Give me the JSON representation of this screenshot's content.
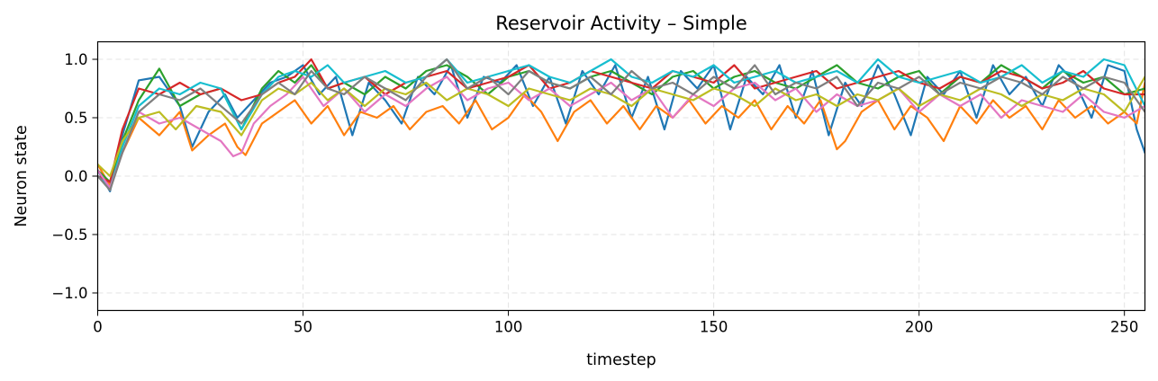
{
  "chart_data": {
    "type": "line",
    "title": "Reservoir Activity – Simple",
    "xlabel": "timestep",
    "ylabel": "Neuron state",
    "xlim": [
      0,
      255
    ],
    "ylim": [
      -1.15,
      1.15
    ],
    "xticks": [
      0,
      50,
      100,
      150,
      200,
      250
    ],
    "yticks": [
      -1.0,
      -0.5,
      0.0,
      0.5,
      1.0
    ],
    "xtick_labels": [
      "0",
      "50",
      "100",
      "150",
      "200",
      "250"
    ],
    "ytick_labels": [
      "−1.0",
      "−0.5",
      "0.0",
      "0.5",
      "1.0"
    ],
    "grid": true,
    "legend": "none",
    "series": [
      {
        "color": "#1f77b4",
        "x": [
          0,
          3,
          6,
          10,
          15,
          20,
          23,
          27,
          31,
          34,
          38,
          42,
          46,
          50,
          54,
          58,
          62,
          66,
          70,
          74,
          78,
          82,
          86,
          90,
          94,
          98,
          102,
          106,
          110,
          114,
          118,
          122,
          126,
          130,
          134,
          138,
          142,
          146,
          150,
          154,
          158,
          162,
          166,
          170,
          174,
          178,
          182,
          186,
          190,
          194,
          198,
          202,
          206,
          210,
          214,
          218,
          222,
          226,
          230,
          234,
          238,
          242,
          246,
          250,
          253,
          255
        ],
        "y": [
          0.05,
          -0.13,
          0.35,
          0.82,
          0.85,
          0.6,
          0.25,
          0.55,
          0.7,
          0.5,
          0.65,
          0.8,
          0.85,
          0.95,
          0.7,
          0.85,
          0.35,
          0.8,
          0.65,
          0.45,
          0.85,
          0.7,
          0.95,
          0.5,
          0.85,
          0.8,
          0.95,
          0.6,
          0.85,
          0.45,
          0.9,
          0.7,
          0.95,
          0.5,
          0.85,
          0.4,
          0.9,
          0.75,
          0.95,
          0.4,
          0.85,
          0.7,
          0.95,
          0.5,
          0.9,
          0.35,
          0.8,
          0.6,
          0.95,
          0.7,
          0.35,
          0.85,
          0.7,
          0.9,
          0.5,
          0.95,
          0.7,
          0.85,
          0.6,
          0.95,
          0.8,
          0.5,
          0.95,
          0.9,
          0.4,
          0.2
        ]
      },
      {
        "color": "#ff7f0e",
        "x": [
          0,
          3,
          6,
          10,
          15,
          20,
          23,
          27,
          31,
          34,
          36,
          40,
          44,
          48,
          52,
          56,
          60,
          64,
          68,
          72,
          76,
          80,
          84,
          88,
          92,
          96,
          100,
          104,
          108,
          112,
          116,
          120,
          124,
          128,
          132,
          136,
          140,
          144,
          148,
          152,
          156,
          160,
          164,
          168,
          172,
          176,
          180,
          182,
          186,
          190,
          194,
          198,
          202,
          206,
          210,
          214,
          218,
          222,
          226,
          230,
          234,
          238,
          242,
          246,
          250,
          253,
          255
        ],
        "y": [
          0.1,
          -0.08,
          0.2,
          0.5,
          0.35,
          0.55,
          0.22,
          0.35,
          0.45,
          0.25,
          0.18,
          0.45,
          0.55,
          0.65,
          0.45,
          0.6,
          0.35,
          0.55,
          0.5,
          0.6,
          0.4,
          0.55,
          0.6,
          0.45,
          0.65,
          0.4,
          0.5,
          0.7,
          0.55,
          0.3,
          0.55,
          0.65,
          0.45,
          0.6,
          0.4,
          0.6,
          0.5,
          0.65,
          0.45,
          0.6,
          0.5,
          0.65,
          0.4,
          0.6,
          0.45,
          0.65,
          0.23,
          0.3,
          0.55,
          0.65,
          0.4,
          0.6,
          0.5,
          0.3,
          0.6,
          0.45,
          0.65,
          0.5,
          0.6,
          0.4,
          0.65,
          0.5,
          0.6,
          0.45,
          0.55,
          0.45,
          0.8
        ]
      },
      {
        "color": "#2ca02c",
        "x": [
          0,
          3,
          6,
          10,
          15,
          20,
          25,
          30,
          35,
          40,
          44,
          48,
          52,
          56,
          60,
          65,
          70,
          75,
          80,
          85,
          90,
          95,
          100,
          105,
          110,
          115,
          120,
          125,
          130,
          135,
          140,
          145,
          150,
          155,
          160,
          165,
          170,
          175,
          180,
          185,
          190,
          195,
          200,
          205,
          210,
          215,
          220,
          225,
          230,
          235,
          240,
          245,
          250,
          255
        ],
        "y": [
          0.05,
          -0.05,
          0.3,
          0.65,
          0.92,
          0.6,
          0.7,
          0.75,
          0.4,
          0.75,
          0.9,
          0.8,
          0.95,
          0.75,
          0.8,
          0.7,
          0.85,
          0.75,
          0.9,
          0.95,
          0.85,
          0.7,
          0.85,
          0.9,
          0.8,
          0.75,
          0.85,
          0.9,
          0.8,
          0.7,
          0.85,
          0.9,
          0.75,
          0.85,
          0.9,
          0.8,
          0.75,
          0.85,
          0.95,
          0.8,
          0.75,
          0.85,
          0.9,
          0.7,
          0.85,
          0.8,
          0.95,
          0.85,
          0.75,
          0.9,
          0.8,
          0.85,
          0.7,
          0.75
        ]
      },
      {
        "color": "#d62728",
        "x": [
          0,
          3,
          6,
          10,
          15,
          20,
          25,
          30,
          35,
          40,
          44,
          48,
          52,
          56,
          60,
          65,
          70,
          75,
          80,
          85,
          90,
          95,
          100,
          105,
          110,
          115,
          120,
          125,
          130,
          135,
          140,
          145,
          150,
          155,
          160,
          165,
          170,
          175,
          180,
          185,
          190,
          195,
          200,
          205,
          210,
          215,
          220,
          225,
          230,
          235,
          240,
          245,
          250,
          255
        ],
        "y": [
          0.0,
          -0.05,
          0.4,
          0.75,
          0.7,
          0.8,
          0.7,
          0.75,
          0.65,
          0.7,
          0.8,
          0.85,
          1.0,
          0.75,
          0.8,
          0.85,
          0.7,
          0.8,
          0.85,
          0.9,
          0.75,
          0.8,
          0.85,
          0.95,
          0.75,
          0.8,
          0.9,
          0.85,
          0.8,
          0.75,
          0.9,
          0.85,
          0.8,
          0.95,
          0.75,
          0.8,
          0.85,
          0.9,
          0.75,
          0.8,
          0.85,
          0.9,
          0.8,
          0.75,
          0.85,
          0.8,
          0.9,
          0.85,
          0.75,
          0.8,
          0.9,
          0.75,
          0.7,
          0.7
        ]
      },
      {
        "color": "#17becf",
        "x": [
          0,
          3,
          6,
          10,
          15,
          20,
          25,
          30,
          35,
          40,
          44,
          48,
          52,
          56,
          60,
          65,
          70,
          75,
          80,
          85,
          90,
          95,
          100,
          105,
          110,
          115,
          120,
          125,
          130,
          135,
          140,
          145,
          150,
          155,
          160,
          165,
          170,
          175,
          180,
          185,
          190,
          195,
          200,
          205,
          210,
          215,
          220,
          225,
          230,
          235,
          240,
          245,
          250,
          255
        ],
        "y": [
          0.0,
          -0.1,
          0.25,
          0.6,
          0.75,
          0.7,
          0.8,
          0.75,
          0.4,
          0.7,
          0.85,
          0.9,
          0.85,
          0.95,
          0.8,
          0.85,
          0.9,
          0.8,
          0.85,
          1.0,
          0.8,
          0.85,
          0.9,
          0.95,
          0.85,
          0.8,
          0.9,
          1.0,
          0.85,
          0.8,
          0.9,
          0.85,
          0.95,
          0.8,
          0.85,
          0.9,
          0.8,
          0.85,
          0.9,
          0.8,
          1.0,
          0.85,
          0.8,
          0.85,
          0.9,
          0.8,
          0.85,
          0.95,
          0.8,
          0.9,
          0.85,
          1.0,
          0.95,
          0.6
        ]
      },
      {
        "color": "#e377c2",
        "x": [
          0,
          3,
          6,
          10,
          15,
          20,
          25,
          30,
          33,
          35,
          38,
          42,
          46,
          50,
          55,
          60,
          65,
          70,
          75,
          80,
          85,
          90,
          95,
          100,
          105,
          110,
          115,
          120,
          125,
          130,
          135,
          140,
          145,
          150,
          155,
          160,
          165,
          170,
          175,
          180,
          185,
          190,
          195,
          200,
          205,
          210,
          215,
          220,
          225,
          230,
          235,
          240,
          245,
          250,
          255
        ],
        "y": [
          0.05,
          -0.1,
          0.2,
          0.55,
          0.45,
          0.5,
          0.4,
          0.3,
          0.17,
          0.2,
          0.45,
          0.6,
          0.7,
          0.85,
          0.6,
          0.75,
          0.55,
          0.7,
          0.6,
          0.75,
          0.85,
          0.65,
          0.75,
          0.8,
          0.65,
          0.75,
          0.6,
          0.7,
          0.8,
          0.65,
          0.75,
          0.5,
          0.7,
          0.6,
          0.75,
          0.8,
          0.65,
          0.75,
          0.55,
          0.7,
          0.6,
          0.65,
          0.75,
          0.55,
          0.7,
          0.6,
          0.7,
          0.5,
          0.65,
          0.6,
          0.55,
          0.7,
          0.55,
          0.5,
          0.6
        ]
      },
      {
        "color": "#bcbd22",
        "x": [
          0,
          3,
          6,
          10,
          15,
          19,
          24,
          30,
          35,
          40,
          44,
          48,
          52,
          56,
          60,
          65,
          70,
          75,
          80,
          85,
          90,
          95,
          100,
          105,
          110,
          115,
          120,
          125,
          130,
          135,
          140,
          145,
          150,
          155,
          160,
          165,
          170,
          175,
          180,
          185,
          190,
          195,
          200,
          205,
          210,
          215,
          220,
          225,
          230,
          235,
          240,
          245,
          250,
          255
        ],
        "y": [
          0.1,
          0.0,
          0.3,
          0.5,
          0.55,
          0.4,
          0.6,
          0.55,
          0.35,
          0.65,
          0.75,
          0.7,
          0.8,
          0.65,
          0.75,
          0.6,
          0.75,
          0.7,
          0.8,
          0.65,
          0.75,
          0.7,
          0.6,
          0.75,
          0.7,
          0.65,
          0.75,
          0.7,
          0.6,
          0.75,
          0.7,
          0.65,
          0.75,
          0.7,
          0.6,
          0.75,
          0.65,
          0.7,
          0.6,
          0.7,
          0.65,
          0.75,
          0.6,
          0.7,
          0.65,
          0.75,
          0.7,
          0.6,
          0.7,
          0.65,
          0.75,
          0.7,
          0.55,
          0.85
        ]
      },
      {
        "color": "#7f7f7f",
        "x": [
          0,
          3,
          6,
          10,
          15,
          20,
          25,
          30,
          35,
          40,
          44,
          48,
          52,
          56,
          60,
          65,
          70,
          75,
          80,
          85,
          90,
          95,
          100,
          105,
          110,
          115,
          120,
          125,
          130,
          135,
          140,
          145,
          150,
          155,
          160,
          165,
          170,
          175,
          180,
          185,
          190,
          195,
          200,
          205,
          210,
          215,
          220,
          225,
          230,
          235,
          240,
          245,
          250,
          255
        ],
        "y": [
          0.0,
          -0.12,
          0.2,
          0.55,
          0.7,
          0.65,
          0.75,
          0.6,
          0.45,
          0.7,
          0.8,
          0.7,
          0.9,
          0.75,
          0.7,
          0.85,
          0.75,
          0.65,
          0.85,
          1.0,
          0.75,
          0.85,
          0.7,
          0.9,
          0.8,
          0.75,
          0.85,
          0.7,
          0.9,
          0.75,
          0.8,
          0.7,
          0.85,
          0.75,
          0.95,
          0.7,
          0.8,
          0.75,
          0.85,
          0.6,
          0.8,
          0.75,
          0.85,
          0.7,
          0.8,
          0.75,
          0.85,
          0.8,
          0.7,
          0.85,
          0.75,
          0.85,
          0.8,
          0.55
        ]
      }
    ]
  }
}
